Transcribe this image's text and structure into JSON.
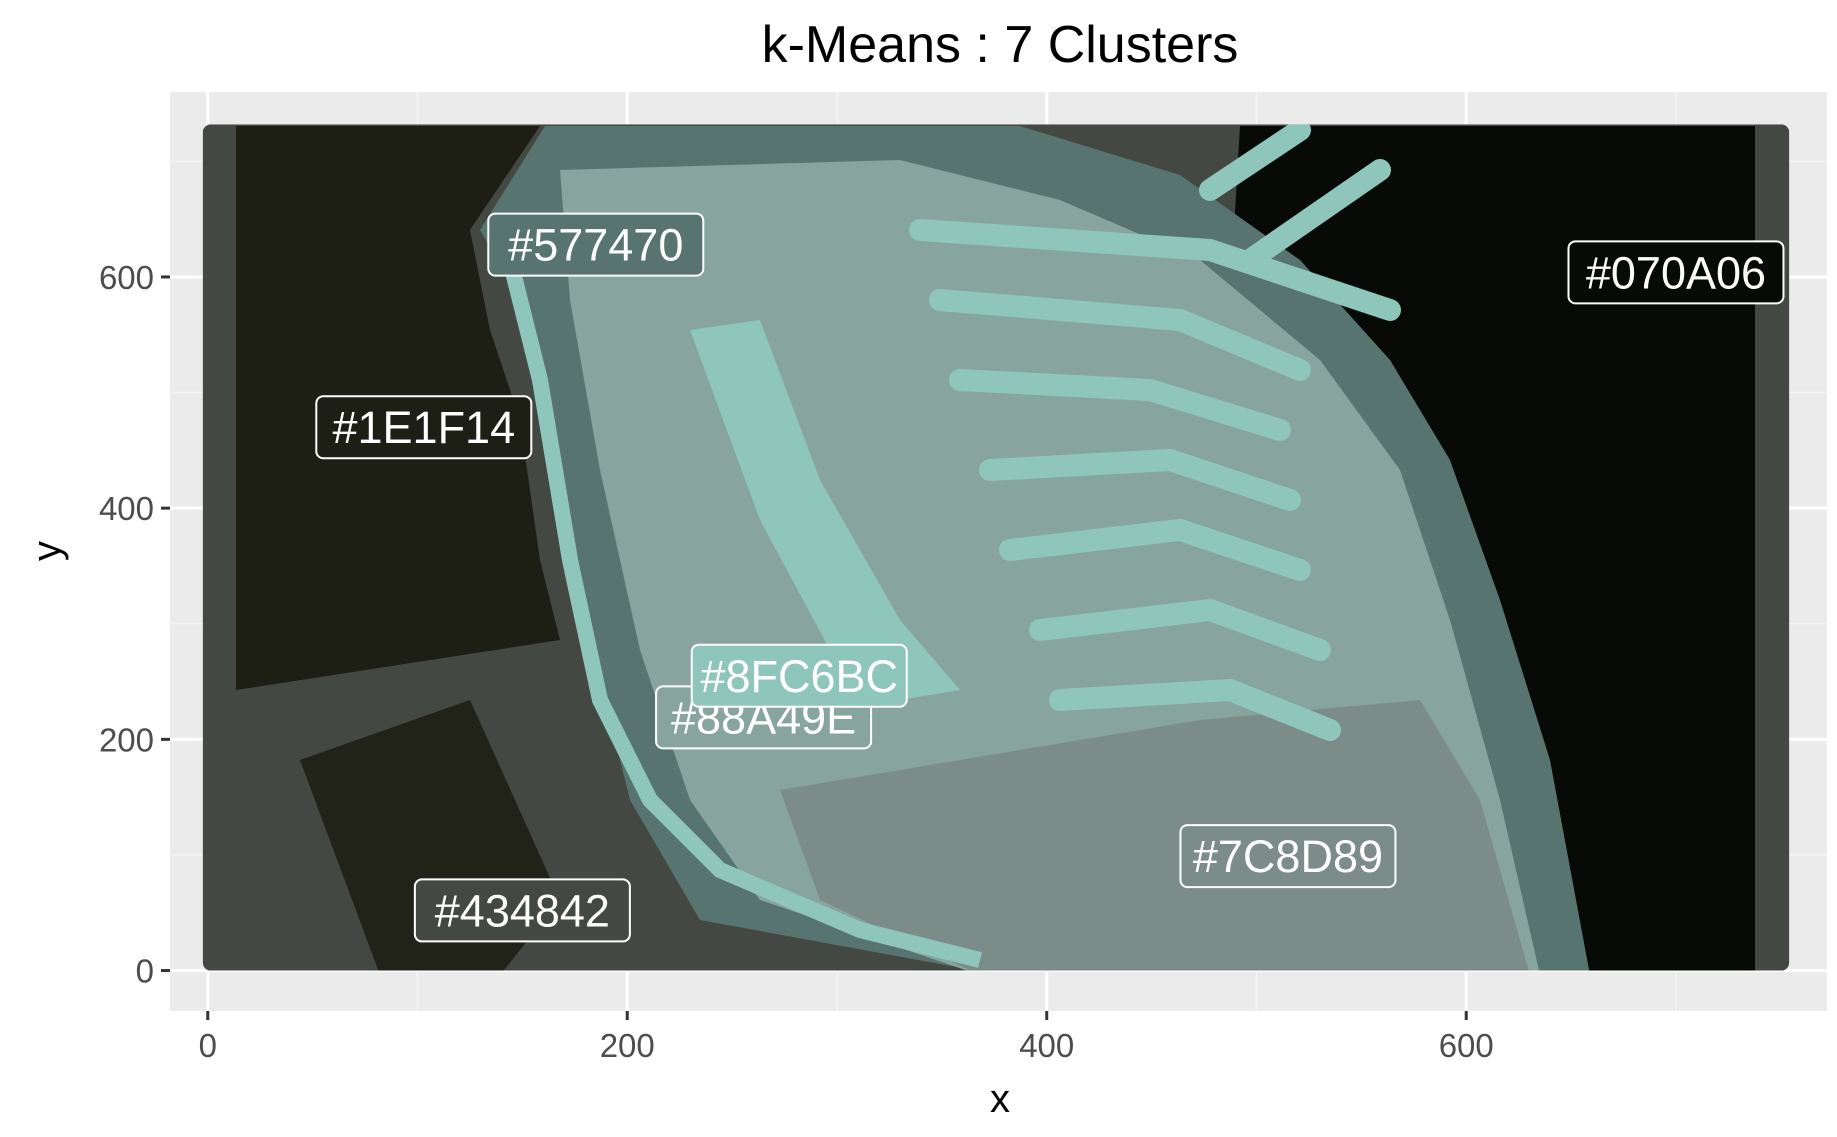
{
  "chart_data": {
    "type": "image-scatter",
    "title": "k-Means : 7 Clusters",
    "xlabel": "x",
    "ylabel": "y",
    "xlim": [
      -18,
      772
    ],
    "ylim": [
      -35,
      760
    ],
    "image_extent": {
      "x": [
        0,
        754
      ],
      "y": [
        0,
        732
      ]
    },
    "x_ticks": [
      0,
      200,
      400,
      600
    ],
    "x_tick_labels": [
      "0",
      "200",
      "400",
      "600"
    ],
    "y_ticks": [
      0,
      200,
      400,
      600
    ],
    "y_tick_labels": [
      "0",
      "200",
      "400",
      "600"
    ],
    "grid": true,
    "legend": "none",
    "colors": {
      "panel_background": "#ebebeb",
      "grid_major": "#ffffff",
      "grid_minor": "#f5f5f5",
      "tick": "#333333",
      "label_text": "#ffffff",
      "label_border": "#ffffff"
    },
    "clusters": [
      {
        "label": "#577470",
        "color": "#577470",
        "x": 185,
        "y": 628
      },
      {
        "label": "#070A06",
        "color": "#070A06",
        "x": 700,
        "y": 604
      },
      {
        "label": "#1E1F14",
        "color": "#1E1F14",
        "x": 103,
        "y": 470
      },
      {
        "label": "#88A49E",
        "color": "#88A49E",
        "x": 265,
        "y": 219
      },
      {
        "label": "#8FC6BC",
        "color": "#8FC6BC",
        "x": 282,
        "y": 255
      },
      {
        "label": "#7C8D89",
        "color": "#7C8D89",
        "x": 515,
        "y": 99
      },
      {
        "label": "#434842",
        "color": "#434842",
        "x": 150,
        "y": 52
      }
    ]
  }
}
